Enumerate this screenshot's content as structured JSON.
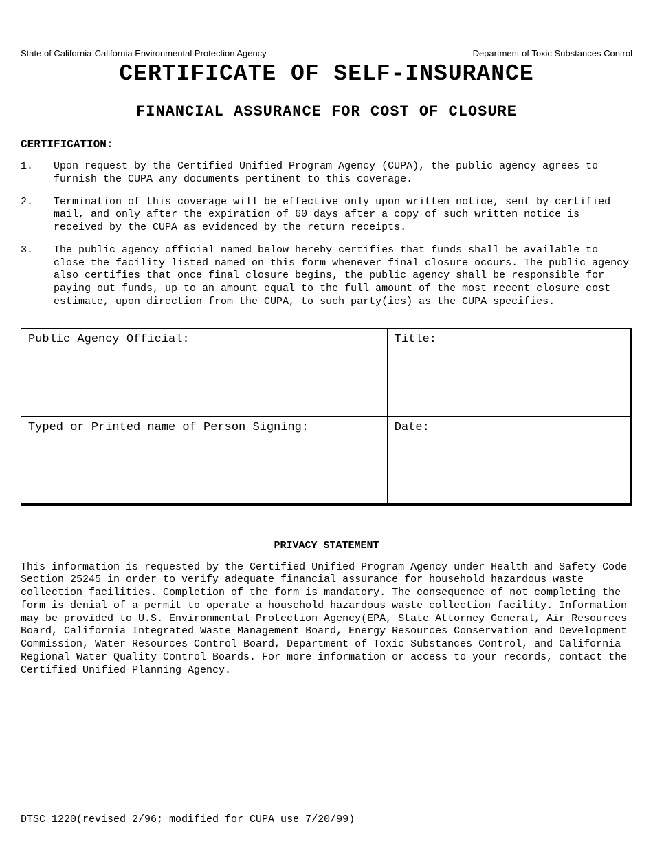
{
  "header": {
    "left": "State of California-California Environmental Protection Agency",
    "right": "Department of Toxic Substances Control"
  },
  "title": "CERTIFICATE OF SELF-INSURANCE",
  "subtitle": "FINANCIAL ASSURANCE FOR COST OF CLOSURE",
  "certification_heading": "CERTIFICATION:",
  "certification_items": [
    {
      "num": "1.",
      "text": "Upon request by the Certified Unified Program Agency (CUPA), the public agency agrees to furnish the CUPA any documents pertinent to this coverage."
    },
    {
      "num": "2.",
      "text": "Termination of this coverage will be effective only upon written notice, sent by certified mail, and only after the expiration of 60 days after a copy of such written notice is received by the CUPA as evidenced by the return receipts."
    },
    {
      "num": "3.",
      "text": "The public agency official named below hereby certifies that funds shall be available to close the facility listed named on this form whenever final closure occurs.  The public agency also certifies that once final closure begins, the public agency shall be responsible for paying out funds, up to an amount equal to the full amount of the most recent closure cost estimate, upon direction from the CUPA, to such party(ies) as the CUPA specifies."
    }
  ],
  "form_fields": {
    "official_label": "Public Agency Official:",
    "title_label": "Title:",
    "name_label": "Typed or Printed name of Person Signing:",
    "date_label": "Date:"
  },
  "privacy_heading": "PRIVACY STATEMENT",
  "privacy_text": "This information is requested by the Certified Unified Program Agency under Health and Safety Code Section 25245 in order to verify adequate financial assurance for household hazardous waste collection facilities.  Completion of the form is mandatory.  The consequence of not completing the form is denial of a permit to operate a household hazardous waste collection facility.  Information may be provided to U.S. Environmental Protection Agency(EPA, State Attorney General, Air Resources Board, California Integrated Waste Management Board, Energy Resources Conservation and Development Commission, Water Resources Control Board, Department of Toxic Substances Control, and California Regional Water Quality Control Boards.  For more information or access to your records, contact the Certified Unified Planning Agency.",
  "footer": "DTSC 1220(revised 2/96; modified for CUPA use 7/20/99)"
}
